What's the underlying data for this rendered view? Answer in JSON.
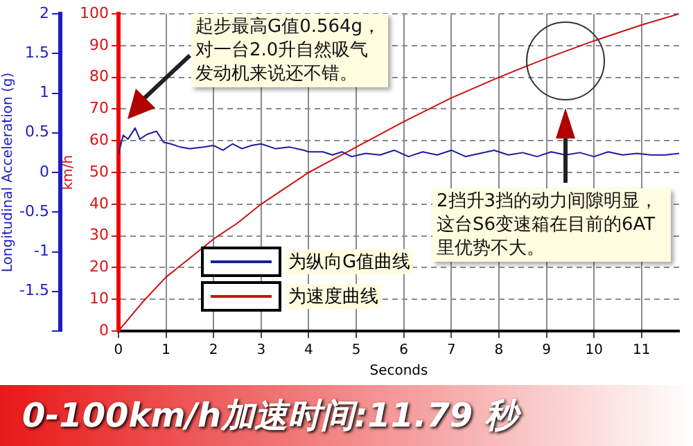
{
  "chart_data": {
    "type": "line",
    "xlabel": "Seconds",
    "ylabel": "Longitudinal Acceleration (g)",
    "y2label": "km/h",
    "xlim": [
      0,
      11.79
    ],
    "xticks": [
      0,
      1,
      2,
      3,
      4,
      5,
      6,
      7,
      8,
      9,
      10,
      11
    ],
    "ylim": [
      -2,
      2
    ],
    "yticks": [
      {
        "value": -2,
        "label": null
      },
      -1.5,
      -1,
      -0.5,
      0,
      0.5,
      1,
      1.5,
      2
    ],
    "y2lim": [
      0,
      100
    ],
    "y2ticks": [
      0,
      10,
      20,
      30,
      40,
      50,
      60,
      70,
      80,
      90,
      100
    ],
    "grid": true,
    "legend": "bottom left",
    "marker": "none",
    "line_style": "solid",
    "series": [
      {
        "name": "为纵向G值曲线",
        "color": "#1c1c9c",
        "axis": "y",
        "x": [
          0,
          0.1,
          0.2,
          0.35,
          0.45,
          0.6,
          0.8,
          0.95,
          1.1,
          1.3,
          1.5,
          1.8,
          2.0,
          2.2,
          2.4,
          2.6,
          2.8,
          3.0,
          3.3,
          3.6,
          3.9,
          4.0,
          4.3,
          4.5,
          4.7,
          4.9,
          5.2,
          5.5,
          5.8,
          6.1,
          6.4,
          6.7,
          7.0,
          7.3,
          7.6,
          7.9,
          8.2,
          8.5,
          8.8,
          9.1,
          9.4,
          9.7,
          10.0,
          10.3,
          10.6,
          10.9,
          11.2,
          11.5,
          11.79
        ],
        "values": [
          0.23,
          0.47,
          0.42,
          0.56,
          0.42,
          0.48,
          0.52,
          0.38,
          0.36,
          0.32,
          0.3,
          0.32,
          0.34,
          0.28,
          0.36,
          0.3,
          0.34,
          0.36,
          0.3,
          0.32,
          0.28,
          0.26,
          0.26,
          0.22,
          0.26,
          0.2,
          0.24,
          0.22,
          0.28,
          0.2,
          0.26,
          0.22,
          0.28,
          0.2,
          0.24,
          0.28,
          0.22,
          0.25,
          0.2,
          0.26,
          0.22,
          0.25,
          0.2,
          0.26,
          0.22,
          0.24,
          0.22,
          0.22,
          0.24
        ]
      },
      {
        "name": "为速度曲线",
        "color": "#cc1111",
        "axis": "y2",
        "x": [
          0,
          0.5,
          1,
          1.5,
          2,
          2.5,
          3,
          3.5,
          4,
          4.5,
          5,
          6,
          7,
          8,
          9,
          10,
          11,
          11.79
        ],
        "values": [
          0,
          9,
          17,
          23,
          29,
          34,
          40,
          45,
          50,
          54,
          58,
          66,
          73.5,
          80,
          86,
          91.5,
          96.5,
          100
        ]
      }
    ],
    "annotations": [
      "起步最高G值0.564g，对一台2.0升自然吸气发动机来说还不错。",
      "2挡升3挡的动力间隙明显，这台S6变速箱在目前的6AT里优势不大。",
      "0-100km/h加速时间:11.79 秒"
    ]
  }
}
